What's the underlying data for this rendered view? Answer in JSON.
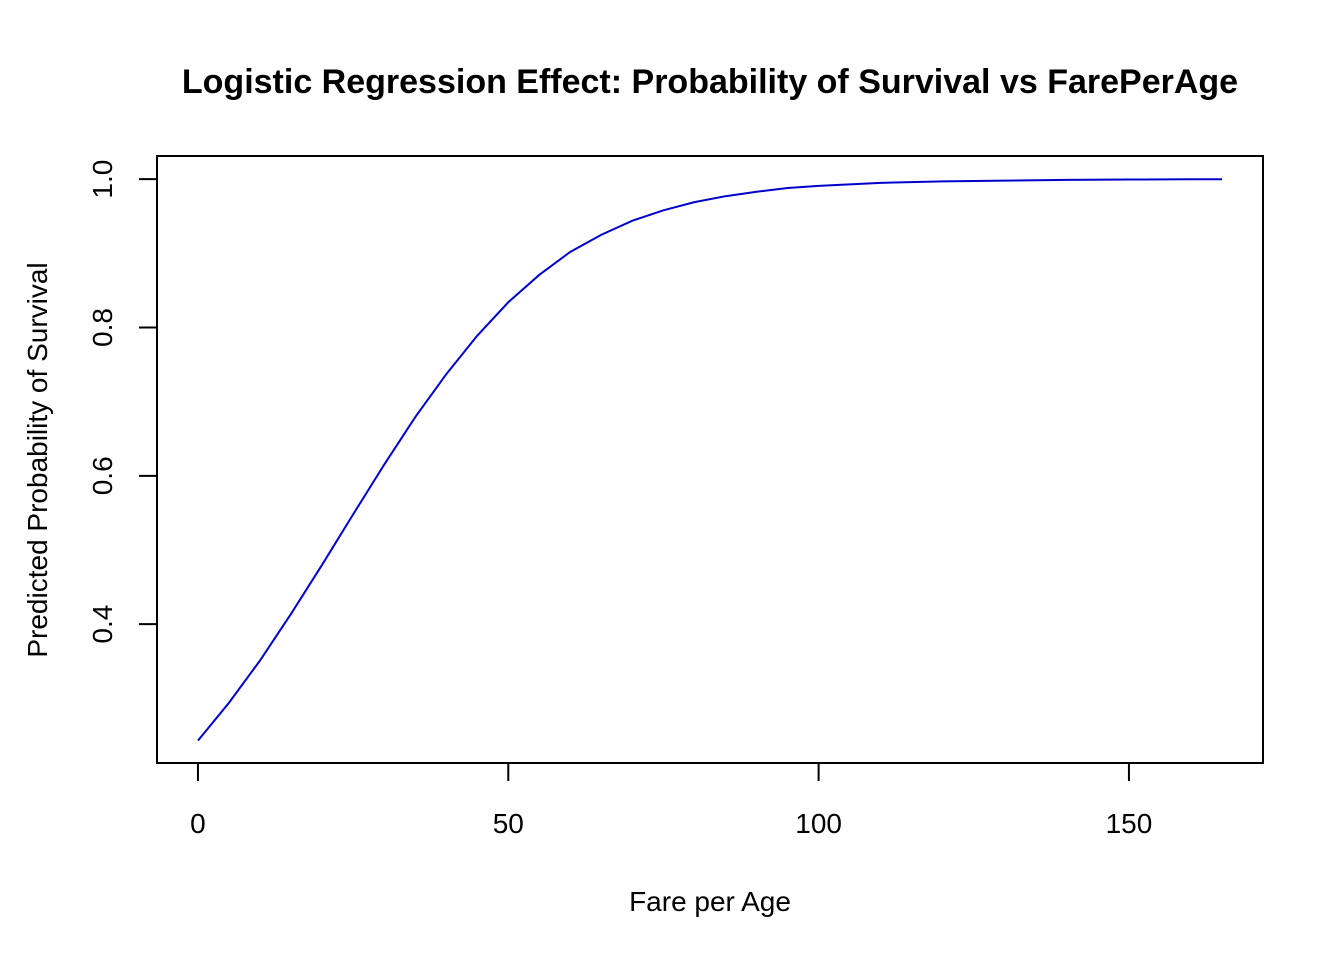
{
  "chart_data": {
    "type": "line",
    "title": "Logistic Regression Effect: Probability of Survival vs FarePerAge",
    "xlabel": "Fare per Age",
    "ylabel": "Predicted Probability of Survival",
    "xlim": [
      -6.6,
      171.6
    ],
    "ylim": [
      0.2128,
      1.0312
    ],
    "x_ticks": [
      0,
      50,
      100,
      150
    ],
    "x_tick_labels": [
      "0",
      "50",
      "100",
      "150"
    ],
    "y_ticks": [
      0.4,
      0.6,
      0.8,
      1.0
    ],
    "y_tick_labels": [
      "0.4",
      "0.6",
      "0.8",
      "1.0"
    ],
    "grid": false,
    "legend": false,
    "series": [
      {
        "color": "#0000CD",
        "x": [
          0,
          5,
          10,
          15,
          20,
          25,
          30,
          35,
          40,
          45,
          50,
          55,
          60,
          65,
          70,
          75,
          80,
          85,
          90,
          95,
          100,
          110,
          120,
          130,
          140,
          150,
          160,
          165
        ],
        "y": [
          0.243,
          0.294,
          0.351,
          0.414,
          0.48,
          0.548,
          0.615,
          0.679,
          0.737,
          0.789,
          0.834,
          0.871,
          0.902,
          0.925,
          0.944,
          0.958,
          0.969,
          0.977,
          0.983,
          0.988,
          0.991,
          0.995,
          0.997,
          0.998,
          0.999,
          0.9995,
          0.9998,
          0.9999
        ]
      }
    ]
  }
}
